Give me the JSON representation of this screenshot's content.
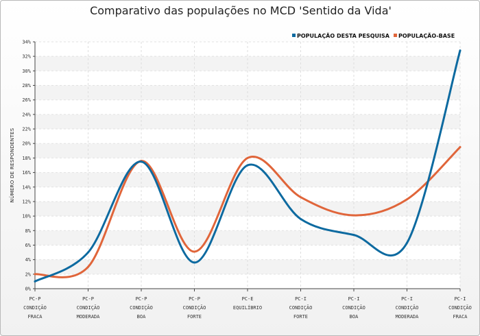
{
  "chart_data": {
    "type": "line",
    "title": "Comparativo das populações no MCD 'Sentido da Vida'",
    "ylabel": "NÚMERO DE RESPONDENTES",
    "xlabel": "",
    "ylim": [
      0,
      34
    ],
    "yticks": [
      "0%",
      "2%",
      "4%",
      "6%",
      "8%",
      "10%",
      "12%",
      "14%",
      "16%",
      "18%",
      "20%",
      "22%",
      "24%",
      "26%",
      "28%",
      "30%",
      "32%",
      "34%"
    ],
    "categories": [
      [
        "PC-P",
        "CONDIÇÃO",
        "FRACA"
      ],
      [
        "PC-P",
        "CONDIÇÃO",
        "MODERADA"
      ],
      [
        "PC-P",
        "CONDIÇÃO",
        "BOA"
      ],
      [
        "PC-P",
        "CONDIÇÃO",
        "FORTE"
      ],
      [
        "PC-E",
        "EQUILÍBRIO"
      ],
      [
        "PC-I",
        "CONDIÇÃO",
        "FORTE"
      ],
      [
        "PC-I",
        "CONDIÇÃO",
        "BOA"
      ],
      [
        "PC-I",
        "CONDIÇÃO",
        "MODERADA"
      ],
      [
        "PC-I",
        "CONDIÇÃO",
        "FRACA"
      ]
    ],
    "series": [
      {
        "name": "POPULAÇÃO DESTA PESQUISA",
        "color": "#0d6aa0",
        "values": [
          1.0,
          5.0,
          17.5,
          3.6,
          17.0,
          9.6,
          7.4,
          6.3,
          32.8
        ]
      },
      {
        "name": "POPULAÇÃO-BASE",
        "color": "#e0653a",
        "values": [
          2.0,
          3.0,
          17.6,
          5.1,
          18.0,
          12.6,
          10.1,
          12.3,
          19.5
        ]
      }
    ],
    "grid": true,
    "legend_position": "top-right"
  }
}
